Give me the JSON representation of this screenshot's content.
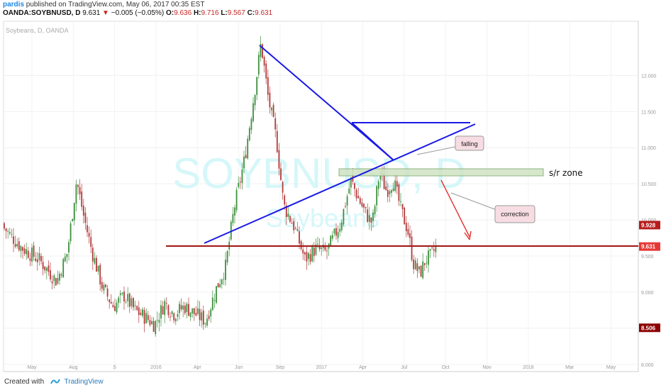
{
  "header": {
    "user": "pardis",
    "published": "published on TradingView.com, May 06, 2017 00:35 EST",
    "symbol": "OANDA:SOYBNUSD, D",
    "last": "9.631",
    "change": "−0.005 (−0.05%)",
    "o_label": "O:",
    "o": "9.636",
    "h_label": "H:",
    "h": "9.716",
    "l_label": "L:",
    "l": "9.567",
    "c_label": "C:",
    "c": "9.631"
  },
  "chart_data": {
    "type": "candlestick",
    "title": "Soybeans, D, OANDA",
    "watermark_symbol": "SOYBNUSD, D",
    "watermark_name": "Soybeans",
    "ylim": [
      7.9,
      12.75
    ],
    "y_ticks": [
      "12.000",
      "11.500",
      "11.000",
      "10.500",
      "10.000",
      "9.500",
      "9.000",
      "8.500",
      "8.000"
    ],
    "x_ticks": [
      "May",
      "Aug",
      "S",
      "2016",
      "Apr",
      "Jun",
      "Sep",
      "2017",
      "Apr",
      "Jul",
      "Oct",
      "Nov",
      "2018",
      "Mar",
      "May"
    ],
    "price_labels": [
      {
        "value": 9.928,
        "text": "9.928",
        "color": "#b71c1c"
      },
      {
        "value": 9.631,
        "text": "9.631",
        "color": "#e53935"
      },
      {
        "value": 8.506,
        "text": "8.506",
        "color": "#8b0000"
      }
    ],
    "close_path": [
      [
        0,
        9.95
      ],
      [
        30,
        9.62
      ],
      [
        55,
        9.45
      ],
      [
        80,
        9.15
      ],
      [
        95,
        9.55
      ],
      [
        108,
        10.55
      ],
      [
        118,
        10.05
      ],
      [
        130,
        9.55
      ],
      [
        145,
        9.05
      ],
      [
        160,
        8.8
      ],
      [
        175,
        8.95
      ],
      [
        190,
        8.75
      ],
      [
        205,
        8.65
      ],
      [
        218,
        8.55
      ],
      [
        232,
        8.85
      ],
      [
        245,
        8.7
      ],
      [
        260,
        8.8
      ],
      [
        275,
        8.7
      ],
      [
        290,
        8.6
      ],
      [
        305,
        9.05
      ],
      [
        318,
        9.35
      ],
      [
        330,
        10.15
      ],
      [
        345,
        10.85
      ],
      [
        360,
        11.85
      ],
      [
        368,
        12.45
      ],
      [
        378,
        11.7
      ],
      [
        390,
        11.1
      ],
      [
        400,
        10.2
      ],
      [
        415,
        9.9
      ],
      [
        430,
        9.45
      ],
      [
        445,
        9.6
      ],
      [
        460,
        9.55
      ],
      [
        470,
        9.75
      ],
      [
        480,
        9.95
      ],
      [
        495,
        10.55
      ],
      [
        505,
        10.3
      ],
      [
        515,
        10.1
      ],
      [
        525,
        9.95
      ],
      [
        535,
        10.65
      ],
      [
        545,
        10.4
      ],
      [
        555,
        10.55
      ],
      [
        565,
        10.15
      ],
      [
        575,
        9.85
      ],
      [
        583,
        9.4
      ],
      [
        592,
        9.25
      ],
      [
        600,
        9.45
      ],
      [
        608,
        9.5
      ],
      [
        615,
        9.63
      ]
    ],
    "annotations": {
      "sr_zone_label": "s/r zone",
      "falling_label": "falling",
      "correction_label": "correction"
    }
  },
  "footer": {
    "created_with": "Created with",
    "brand": "TradingView"
  },
  "colors": {
    "trendline": "#1a1ae6",
    "support_line": "#a31515",
    "arrow": "#e53935",
    "zone_fill": "#cfe3c3",
    "bull": "#3c8f3c",
    "bear": "#b23a3a"
  }
}
